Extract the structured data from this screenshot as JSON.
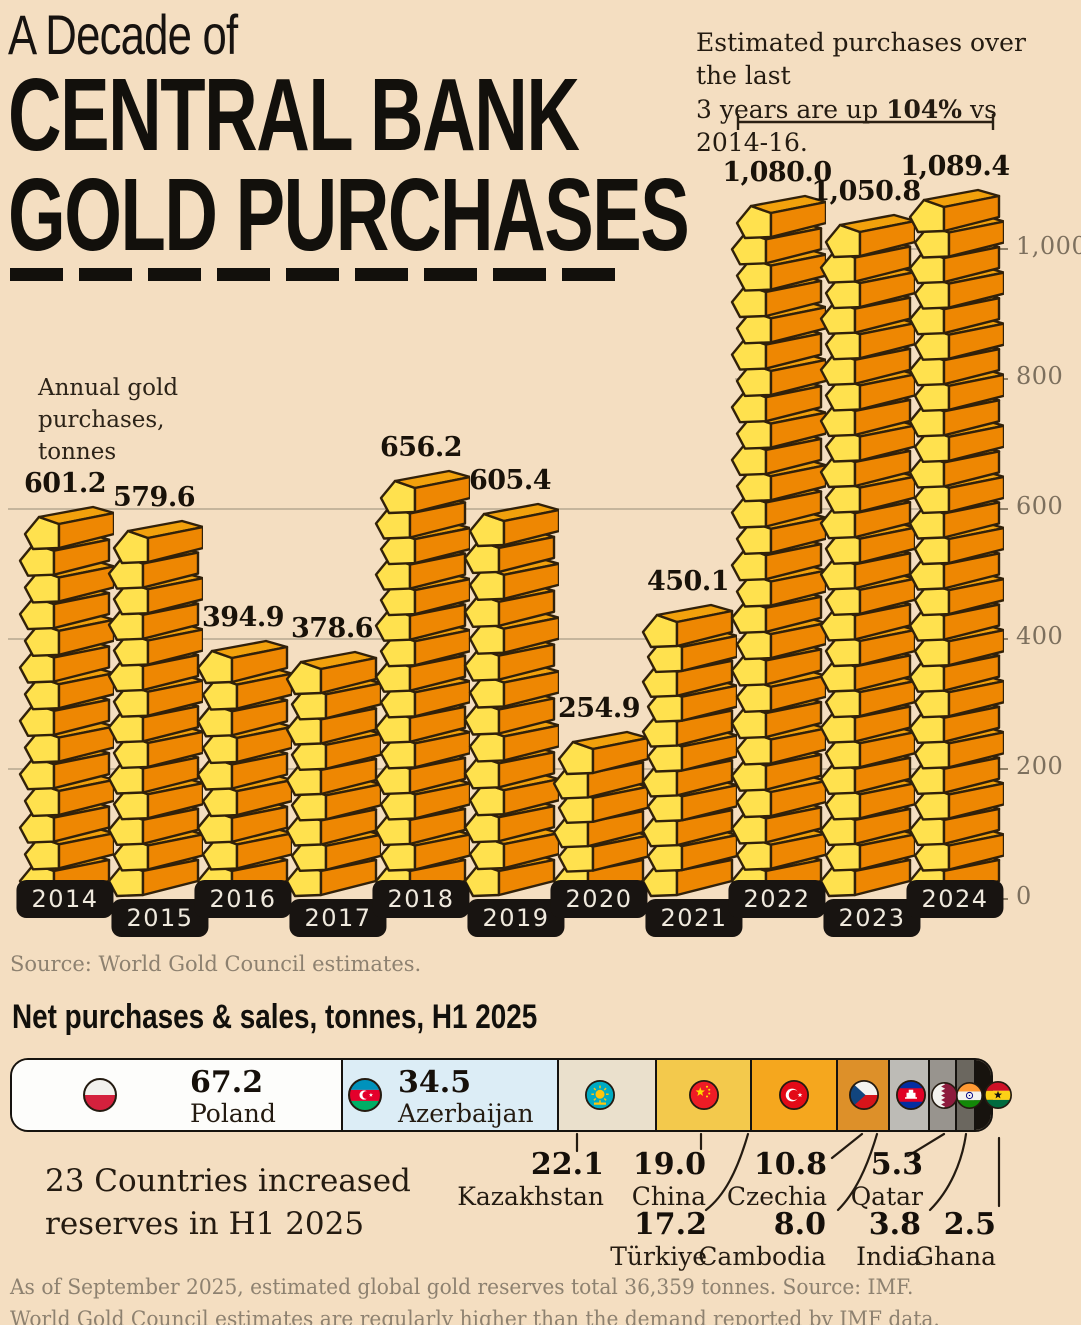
{
  "title": {
    "eyebrow": "A Decade of",
    "line1": "CENTRAL BANK",
    "line2": "GOLD PURCHASES"
  },
  "annotation": {
    "line1": "Estimated purchases over the last",
    "line2_pre": "3 years are up ",
    "line2_bold": "104%",
    "line2_post": " vs 2014-16."
  },
  "y_axis_label": {
    "line1": "Annual gold",
    "line2": "purchases,",
    "line3": "tonnes"
  },
  "source": "Source: World Gold Council estimates.",
  "section2": {
    "heading": "Net purchases & sales, tonnes, H1 2025",
    "note_line1": "23 Countries increased",
    "note_line2": "reserves in H1 2025"
  },
  "footer": {
    "line1": "As of September 2025, estimated global gold reserves total 36,359 tonnes. Source: IMF.",
    "line2": "World Gold Council estimates are regularly higher than the demand reported by IMF data."
  },
  "chart_data": [
    {
      "type": "bar",
      "title": "A Decade of Central Bank Gold Purchases",
      "ylabel": "Annual gold purchases, tonnes",
      "categories": [
        "2014",
        "2015",
        "2016",
        "2017",
        "2018",
        "2019",
        "2020",
        "2021",
        "2022",
        "2023",
        "2024"
      ],
      "values": [
        601.2,
        579.6,
        394.9,
        378.6,
        656.2,
        605.4,
        254.9,
        450.1,
        1080.0,
        1050.8,
        1089.4
      ],
      "value_labels": [
        "601.2",
        "579.6",
        "394.9",
        "378.6",
        "656.2",
        "605.4",
        "254.9",
        "450.1",
        "1,080.0",
        "1,050.8",
        "1,089.4"
      ],
      "yticks": [
        0,
        200,
        400,
        600,
        800,
        1000
      ],
      "ytick_labels": [
        "0",
        "200",
        "400",
        "600",
        "800",
        "1,000"
      ],
      "ylim": [
        0,
        1100
      ],
      "grid": true,
      "legend": "none",
      "annotation": "Estimated purchases over the last 3 years are up 104% vs 2014-16.",
      "bracket_years": [
        "2022",
        "2023",
        "2024"
      ]
    },
    {
      "type": "bar",
      "subtype": "proportional-segmented-bar",
      "title": "Net purchases & sales, tonnes, H1 2025",
      "segments": [
        {
          "label": "Poland",
          "value": 67.2,
          "value_label": "67.2",
          "flag": "poland",
          "color": "#fdfdfb"
        },
        {
          "label": "Azerbaijan",
          "value": 34.5,
          "value_label": "34.5",
          "flag": "azerbaijan",
          "color": "#dcedf6"
        },
        {
          "label": "Kazakhstan",
          "value": 22.1,
          "value_label": "22.1",
          "flag": "kazakhstan",
          "color": "#eae0cc"
        },
        {
          "label": "China",
          "value": 19.0,
          "value_label": "19.0",
          "flag": "china",
          "color": "#f3c94c"
        },
        {
          "label": "Türkiye",
          "value": 17.2,
          "value_label": "17.2",
          "flag": "turkiye",
          "color": "#f5a71e"
        },
        {
          "label": "Czechia",
          "value": 10.8,
          "value_label": "10.8",
          "flag": "czechia",
          "color": "#dd9029"
        },
        {
          "label": "Cambodia",
          "value": 8.0,
          "value_label": "8.0",
          "flag": "cambodia",
          "color": "#bdbbb6"
        },
        {
          "label": "Qatar",
          "value": 5.3,
          "value_label": "5.3",
          "flag": "qatar",
          "color": "#98948e"
        },
        {
          "label": "India",
          "value": 3.8,
          "value_label": "3.8",
          "flag": "india",
          "color": "#6b675f"
        },
        {
          "label": "Ghana",
          "value": 2.5,
          "value_label": "2.5",
          "flag": "ghana",
          "color": "#17130e"
        }
      ]
    }
  ],
  "colors": {
    "background": "#f4dec1",
    "ingot_front": "#ee8702",
    "ingot_top": "#f2a10c",
    "ingot_side": "#ffe14e",
    "ingot_outline": "#31210a",
    "pill_bg": "#181411",
    "pill_text": "#efe9dd",
    "grid": "#c5b59c",
    "tick_text": "#7d705e",
    "ink": "#12100c"
  }
}
